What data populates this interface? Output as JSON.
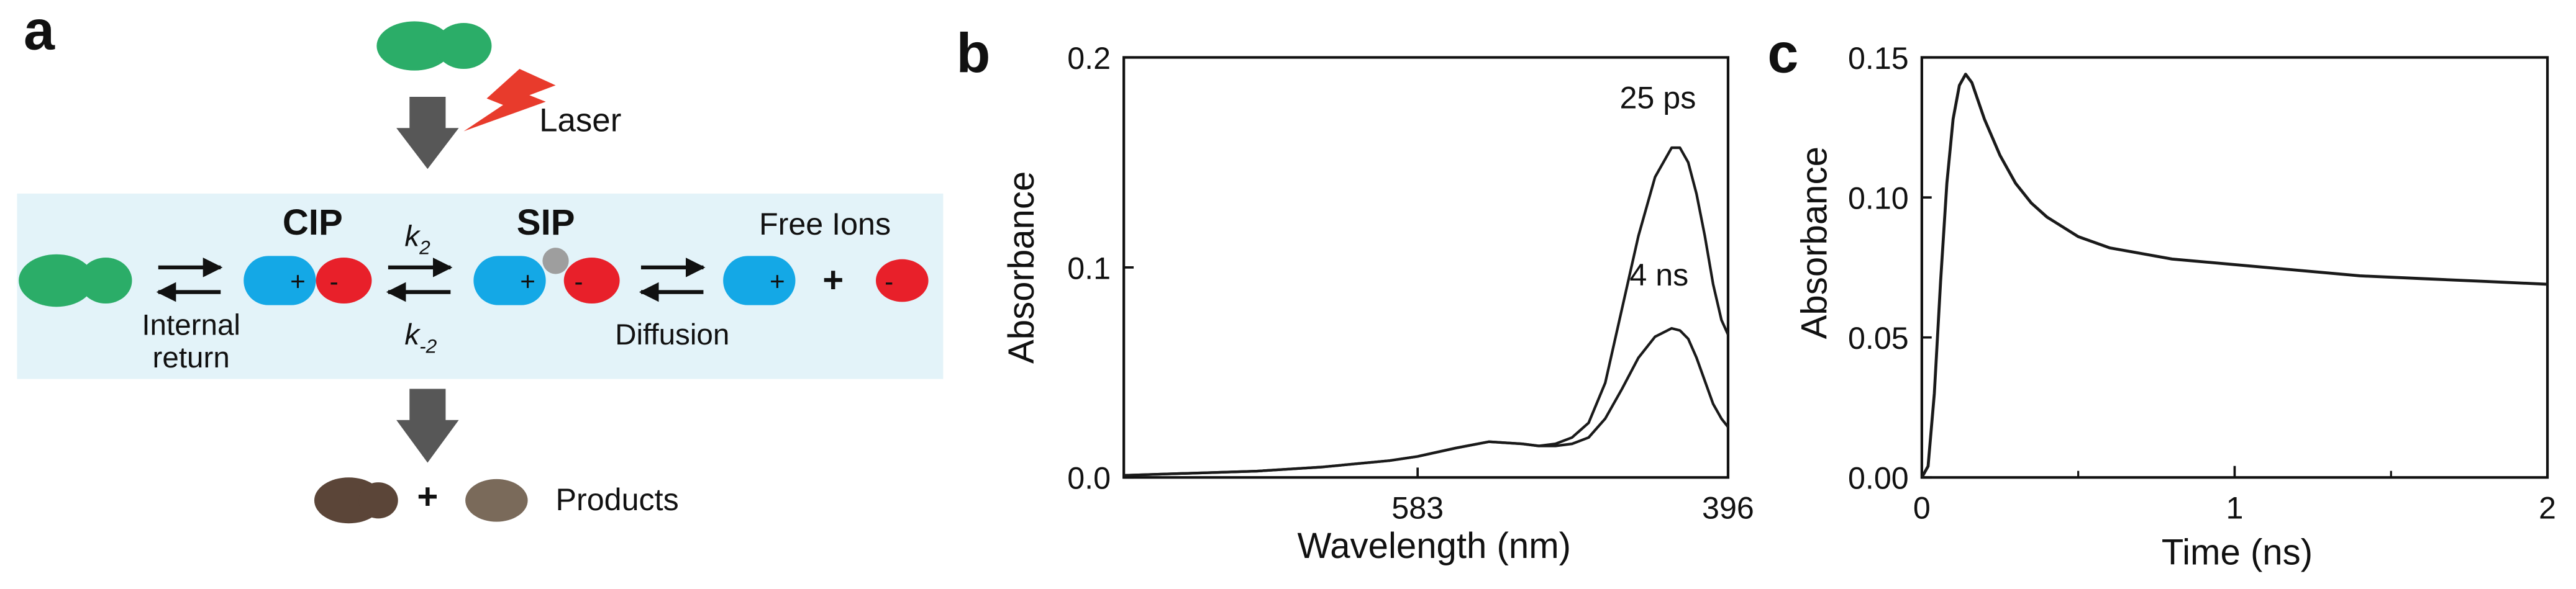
{
  "colors": {
    "band_bg": "#e3f3f9",
    "green": "#2bad68",
    "green_light": "#4cbd78",
    "blue": "#14a8e6",
    "red": "#e8202a",
    "grey_dot": "#9e9e9e",
    "arrow_grey": "#575757",
    "laser_red": "#e83b2c",
    "product_dark": "#5b4538",
    "product_light": "#7a6a5a",
    "curve": "#1a1a1a"
  },
  "panel_a": {
    "label": "a",
    "laser": "Laser",
    "cip": "CIP",
    "sip": "SIP",
    "free_ions": "Free Ions",
    "internal": "Internal",
    "return": "return",
    "k2_k": "k",
    "k2_sub": "2",
    "km2_k": "k",
    "km2_sub": "-2",
    "diffusion": "Diffusion",
    "products": "Products",
    "plus": "+",
    "minus": "-",
    "icons": {
      "lightning": "lightning-bolt-icon",
      "down_arrow": "down-arrow-icon",
      "equilibrium": "equilibrium-arrows-icon"
    }
  },
  "panel_b": {
    "label": "b",
    "ylabel": "Absorbance",
    "xlabel": "Wavelength (nm)",
    "yticks": [
      "0.0",
      "0.1",
      "0.2"
    ],
    "xticks": [
      "583",
      "396"
    ],
    "ann_top": "25 ps",
    "ann_bottom": "4 ns"
  },
  "panel_c": {
    "label": "c",
    "ylabel": "Absorbance",
    "xlabel": "Time (ns)",
    "yticks": [
      "0.00",
      "0.05",
      "0.10",
      "0.15"
    ],
    "xticks": [
      "0",
      "1",
      "2"
    ]
  },
  "chart_data": [
    {
      "type": "line",
      "panel": "b",
      "xlabel": "Wavelength (nm)",
      "ylabel": "Absorbance",
      "x_reversed": true,
      "xlim": [
        760,
        396
      ],
      "ylim": [
        0,
        0.2
      ],
      "series": [
        {
          "name": "25 ps",
          "x": [
            760,
            720,
            680,
            640,
            600,
            583,
            560,
            540,
            520,
            510,
            500,
            490,
            480,
            470,
            460,
            450,
            440,
            430,
            425,
            420,
            415,
            410,
            405,
            400,
            396
          ],
          "y": [
            0.001,
            0.002,
            0.003,
            0.005,
            0.008,
            0.01,
            0.014,
            0.017,
            0.016,
            0.015,
            0.016,
            0.019,
            0.026,
            0.045,
            0.08,
            0.115,
            0.143,
            0.157,
            0.157,
            0.15,
            0.135,
            0.115,
            0.092,
            0.075,
            0.068
          ]
        },
        {
          "name": "4 ns",
          "x": [
            760,
            720,
            680,
            640,
            600,
            583,
            560,
            540,
            520,
            510,
            500,
            490,
            480,
            470,
            460,
            450,
            440,
            430,
            425,
            420,
            415,
            410,
            405,
            400,
            396
          ],
          "y": [
            0.001,
            0.002,
            0.003,
            0.005,
            0.008,
            0.01,
            0.014,
            0.017,
            0.016,
            0.015,
            0.015,
            0.016,
            0.019,
            0.028,
            0.042,
            0.057,
            0.067,
            0.071,
            0.07,
            0.066,
            0.057,
            0.046,
            0.035,
            0.028,
            0.024
          ]
        }
      ]
    },
    {
      "type": "line",
      "panel": "c",
      "xlabel": "Time (ns)",
      "ylabel": "Absorbance",
      "xlim": [
        0,
        2
      ],
      "ylim": [
        0,
        0.15
      ],
      "series": [
        {
          "name": "",
          "x": [
            0.0,
            0.02,
            0.04,
            0.06,
            0.08,
            0.1,
            0.12,
            0.14,
            0.16,
            0.2,
            0.25,
            0.3,
            0.35,
            0.4,
            0.5,
            0.6,
            0.7,
            0.8,
            1.0,
            1.2,
            1.4,
            1.6,
            1.8,
            2.0
          ],
          "y": [
            0.0,
            0.004,
            0.03,
            0.07,
            0.105,
            0.128,
            0.14,
            0.144,
            0.141,
            0.128,
            0.115,
            0.105,
            0.098,
            0.093,
            0.086,
            0.082,
            0.08,
            0.078,
            0.076,
            0.074,
            0.072,
            0.071,
            0.07,
            0.069
          ]
        }
      ]
    }
  ]
}
